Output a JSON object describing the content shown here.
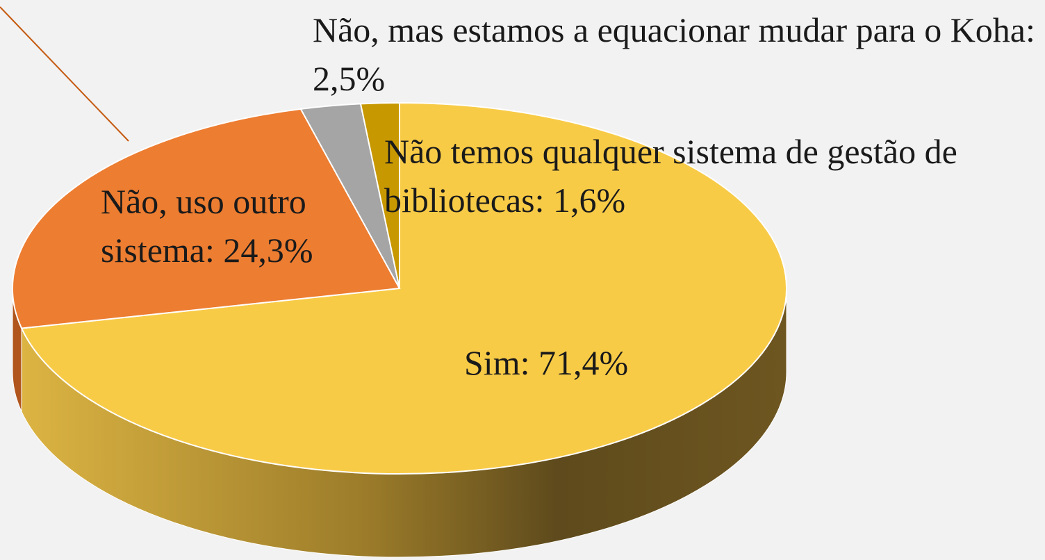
{
  "chart_data": {
    "type": "pie",
    "values": [
      71.4,
      24.3,
      2.5,
      1.6
    ],
    "value_labels": [
      "Sim: 71,4%",
      "Não, uso outro sistema: 24,3%",
      "Não, mas estamos a equacionar mudar para o Koha: 2,5%",
      "Não temos qualquer sistema de gestão de bibliotecas: 1,6%"
    ],
    "colors": [
      "#f8cb47",
      "#ed7d31",
      "#a5a5a5",
      "#c89800"
    ]
  }
}
